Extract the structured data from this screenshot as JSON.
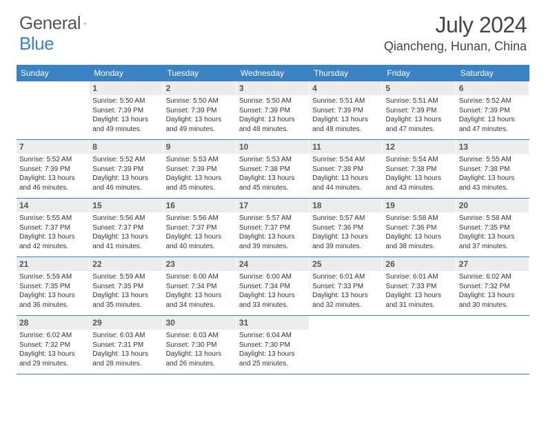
{
  "logo": {
    "text1": "General",
    "text2": "Blue"
  },
  "title": "July 2024",
  "location": "Qiancheng, Hunan, China",
  "colors": {
    "header_bg": "#3b82c4",
    "header_text": "#ffffff",
    "daynum_bg": "#ececec",
    "daynum_text": "#555555",
    "body_text": "#333333",
    "divider": "#3b82c4",
    "page_bg": "#ffffff"
  },
  "weekdays": [
    "Sunday",
    "Monday",
    "Tuesday",
    "Wednesday",
    "Thursday",
    "Friday",
    "Saturday"
  ],
  "weeks": [
    [
      {
        "n": "",
        "sr": "",
        "ss": "",
        "dl": ""
      },
      {
        "n": "1",
        "sr": "Sunrise: 5:50 AM",
        "ss": "Sunset: 7:39 PM",
        "dl": "Daylight: 13 hours and 49 minutes."
      },
      {
        "n": "2",
        "sr": "Sunrise: 5:50 AM",
        "ss": "Sunset: 7:39 PM",
        "dl": "Daylight: 13 hours and 49 minutes."
      },
      {
        "n": "3",
        "sr": "Sunrise: 5:50 AM",
        "ss": "Sunset: 7:39 PM",
        "dl": "Daylight: 13 hours and 48 minutes."
      },
      {
        "n": "4",
        "sr": "Sunrise: 5:51 AM",
        "ss": "Sunset: 7:39 PM",
        "dl": "Daylight: 13 hours and 48 minutes."
      },
      {
        "n": "5",
        "sr": "Sunrise: 5:51 AM",
        "ss": "Sunset: 7:39 PM",
        "dl": "Daylight: 13 hours and 47 minutes."
      },
      {
        "n": "6",
        "sr": "Sunrise: 5:52 AM",
        "ss": "Sunset: 7:39 PM",
        "dl": "Daylight: 13 hours and 47 minutes."
      }
    ],
    [
      {
        "n": "7",
        "sr": "Sunrise: 5:52 AM",
        "ss": "Sunset: 7:39 PM",
        "dl": "Daylight: 13 hours and 46 minutes."
      },
      {
        "n": "8",
        "sr": "Sunrise: 5:52 AM",
        "ss": "Sunset: 7:39 PM",
        "dl": "Daylight: 13 hours and 46 minutes."
      },
      {
        "n": "9",
        "sr": "Sunrise: 5:53 AM",
        "ss": "Sunset: 7:39 PM",
        "dl": "Daylight: 13 hours and 45 minutes."
      },
      {
        "n": "10",
        "sr": "Sunrise: 5:53 AM",
        "ss": "Sunset: 7:38 PM",
        "dl": "Daylight: 13 hours and 45 minutes."
      },
      {
        "n": "11",
        "sr": "Sunrise: 5:54 AM",
        "ss": "Sunset: 7:38 PM",
        "dl": "Daylight: 13 hours and 44 minutes."
      },
      {
        "n": "12",
        "sr": "Sunrise: 5:54 AM",
        "ss": "Sunset: 7:38 PM",
        "dl": "Daylight: 13 hours and 43 minutes."
      },
      {
        "n": "13",
        "sr": "Sunrise: 5:55 AM",
        "ss": "Sunset: 7:38 PM",
        "dl": "Daylight: 13 hours and 43 minutes."
      }
    ],
    [
      {
        "n": "14",
        "sr": "Sunrise: 5:55 AM",
        "ss": "Sunset: 7:37 PM",
        "dl": "Daylight: 13 hours and 42 minutes."
      },
      {
        "n": "15",
        "sr": "Sunrise: 5:56 AM",
        "ss": "Sunset: 7:37 PM",
        "dl": "Daylight: 13 hours and 41 minutes."
      },
      {
        "n": "16",
        "sr": "Sunrise: 5:56 AM",
        "ss": "Sunset: 7:37 PM",
        "dl": "Daylight: 13 hours and 40 minutes."
      },
      {
        "n": "17",
        "sr": "Sunrise: 5:57 AM",
        "ss": "Sunset: 7:37 PM",
        "dl": "Daylight: 13 hours and 39 minutes."
      },
      {
        "n": "18",
        "sr": "Sunrise: 5:57 AM",
        "ss": "Sunset: 7:36 PM",
        "dl": "Daylight: 13 hours and 39 minutes."
      },
      {
        "n": "19",
        "sr": "Sunrise: 5:58 AM",
        "ss": "Sunset: 7:36 PM",
        "dl": "Daylight: 13 hours and 38 minutes."
      },
      {
        "n": "20",
        "sr": "Sunrise: 5:58 AM",
        "ss": "Sunset: 7:35 PM",
        "dl": "Daylight: 13 hours and 37 minutes."
      }
    ],
    [
      {
        "n": "21",
        "sr": "Sunrise: 5:59 AM",
        "ss": "Sunset: 7:35 PM",
        "dl": "Daylight: 13 hours and 36 minutes."
      },
      {
        "n": "22",
        "sr": "Sunrise: 5:59 AM",
        "ss": "Sunset: 7:35 PM",
        "dl": "Daylight: 13 hours and 35 minutes."
      },
      {
        "n": "23",
        "sr": "Sunrise: 6:00 AM",
        "ss": "Sunset: 7:34 PM",
        "dl": "Daylight: 13 hours and 34 minutes."
      },
      {
        "n": "24",
        "sr": "Sunrise: 6:00 AM",
        "ss": "Sunset: 7:34 PM",
        "dl": "Daylight: 13 hours and 33 minutes."
      },
      {
        "n": "25",
        "sr": "Sunrise: 6:01 AM",
        "ss": "Sunset: 7:33 PM",
        "dl": "Daylight: 13 hours and 32 minutes."
      },
      {
        "n": "26",
        "sr": "Sunrise: 6:01 AM",
        "ss": "Sunset: 7:33 PM",
        "dl": "Daylight: 13 hours and 31 minutes."
      },
      {
        "n": "27",
        "sr": "Sunrise: 6:02 AM",
        "ss": "Sunset: 7:32 PM",
        "dl": "Daylight: 13 hours and 30 minutes."
      }
    ],
    [
      {
        "n": "28",
        "sr": "Sunrise: 6:02 AM",
        "ss": "Sunset: 7:32 PM",
        "dl": "Daylight: 13 hours and 29 minutes."
      },
      {
        "n": "29",
        "sr": "Sunrise: 6:03 AM",
        "ss": "Sunset: 7:31 PM",
        "dl": "Daylight: 13 hours and 28 minutes."
      },
      {
        "n": "30",
        "sr": "Sunrise: 6:03 AM",
        "ss": "Sunset: 7:30 PM",
        "dl": "Daylight: 13 hours and 26 minutes."
      },
      {
        "n": "31",
        "sr": "Sunrise: 6:04 AM",
        "ss": "Sunset: 7:30 PM",
        "dl": "Daylight: 13 hours and 25 minutes."
      },
      {
        "n": "",
        "sr": "",
        "ss": "",
        "dl": ""
      },
      {
        "n": "",
        "sr": "",
        "ss": "",
        "dl": ""
      },
      {
        "n": "",
        "sr": "",
        "ss": "",
        "dl": ""
      }
    ]
  ]
}
